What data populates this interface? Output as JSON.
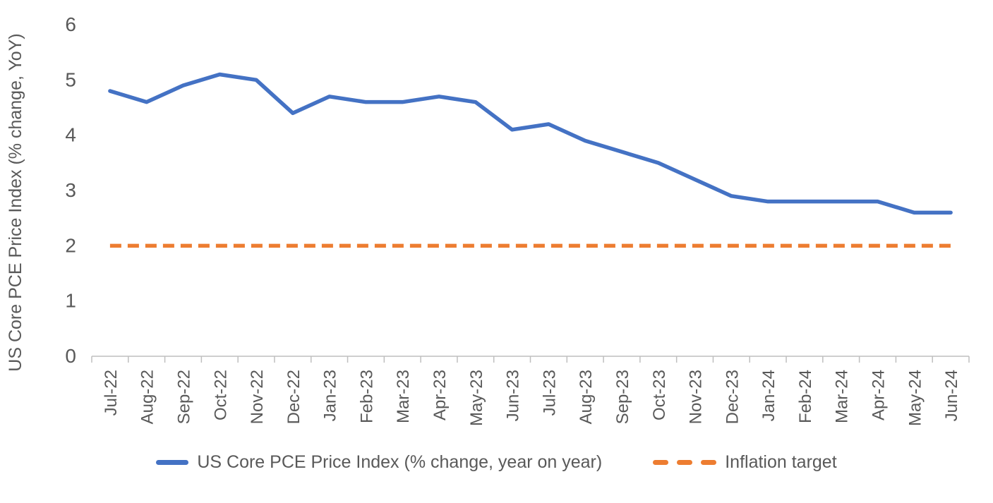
{
  "chart_data": {
    "type": "line",
    "categories": [
      "Jul-22",
      "Aug-22",
      "Sep-22",
      "Oct-22",
      "Nov-22",
      "Dec-22",
      "Jan-23",
      "Feb-23",
      "Mar-23",
      "Apr-23",
      "May-23",
      "Jun-23",
      "Jul-23",
      "Aug-23",
      "Sep-23",
      "Oct-23",
      "Nov-23",
      "Dec-23",
      "Jan-24",
      "Feb-24",
      "Mar-24",
      "Apr-24",
      "May-24",
      "Jun-24"
    ],
    "series": [
      {
        "name": "US Core PCE Price Index (% change, year on year)",
        "color": "#4472C4",
        "style": "solid",
        "values": [
          4.8,
          4.6,
          4.9,
          5.1,
          5.0,
          4.4,
          4.7,
          4.6,
          4.6,
          4.7,
          4.6,
          4.1,
          4.2,
          3.9,
          3.7,
          3.5,
          3.2,
          2.9,
          2.8,
          2.8,
          2.8,
          2.8,
          2.6,
          2.6
        ]
      },
      {
        "name": "Inflation target",
        "color": "#ED7D31",
        "style": "dashed",
        "constant": 2
      }
    ],
    "title": "",
    "xlabel": "",
    "ylabel": "US Core PCE Price Index (% change, YoY)",
    "ylim": [
      0,
      6
    ],
    "ytick_step": 1,
    "yticks": [
      "0",
      "1",
      "2",
      "3",
      "4",
      "5",
      "6"
    ],
    "grid": false,
    "legend_position": "bottom",
    "axis_color": "#BFBFBF",
    "text_color": "#595959"
  }
}
